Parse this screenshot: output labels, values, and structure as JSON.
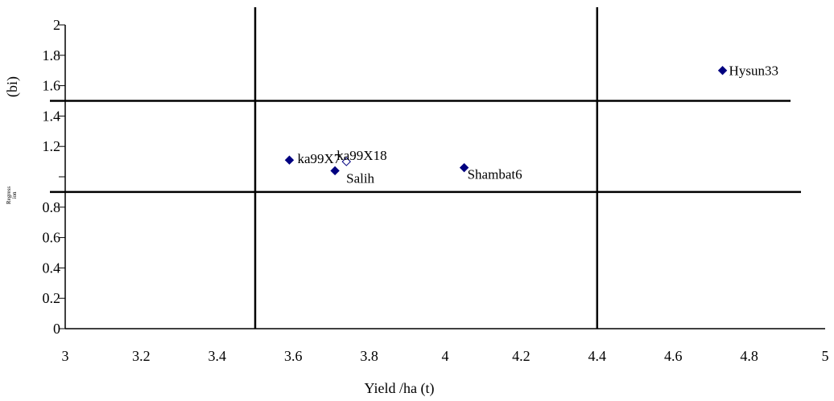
{
  "chart_data": {
    "type": "scatter",
    "title": "",
    "xlabel": "Yield /ha (t)",
    "ylabel": "(bi)",
    "ylabel_small": [
      "Regress",
      "ion"
    ],
    "xlim": [
      3,
      5
    ],
    "ylim": [
      0,
      2
    ],
    "xticks": [
      3,
      3.2,
      3.4,
      3.6,
      3.8,
      4,
      4.2,
      4.4,
      4.6,
      4.8,
      5
    ],
    "xtick_labels": [
      "3",
      "3.2",
      "3.4",
      "3.6",
      "3.8",
      "4",
      "4.2",
      "4.4",
      "4.6",
      "4.8",
      "5"
    ],
    "yticks": [
      0,
      0.2,
      0.4,
      0.6,
      0.8,
      1.0,
      1.2,
      1.4,
      1.6,
      1.8,
      2
    ],
    "ytick_labels": [
      "0",
      "0.2",
      "0.4",
      "0.6",
      "0.8",
      "",
      "1.2",
      "1.4",
      "1.6",
      "1.8",
      "2"
    ],
    "grid": false,
    "reference_lines": {
      "vertical_x": [
        3.5,
        4.4
      ],
      "horizontal_y": [
        1.5,
        0.9
      ]
    },
    "points": [
      {
        "label": "ka99X7",
        "x": 3.59,
        "y": 1.11,
        "marker": "filled-diamond"
      },
      {
        "label": "ka99X18",
        "x": 3.74,
        "y": 1.1,
        "marker": "open-diamond"
      },
      {
        "label": "Salih",
        "x": 3.71,
        "y": 1.04,
        "marker": "filled-diamond"
      },
      {
        "label": "Shambat6",
        "x": 4.05,
        "y": 1.06,
        "marker": "filled-diamond"
      },
      {
        "label": "Hysun33",
        "x": 4.73,
        "y": 1.7,
        "marker": "filled-diamond"
      }
    ],
    "colors": {
      "marker": "#000080",
      "lines": "#000000"
    }
  }
}
